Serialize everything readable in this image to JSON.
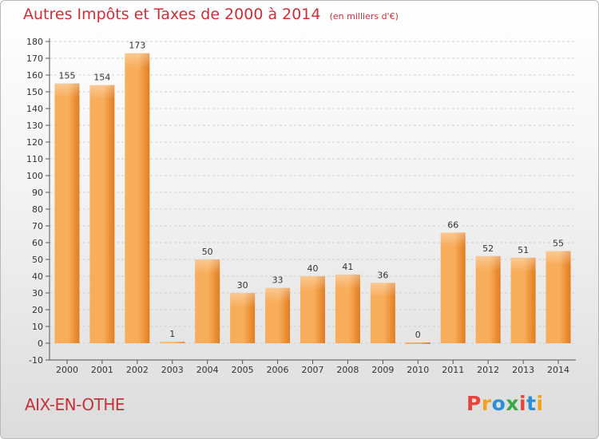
{
  "header": {
    "title": "Autres Impôts et Taxes de 2000 à 2014",
    "unit": "(en milliers d'€)"
  },
  "footer": {
    "place": "AIX-EN-OTHE",
    "logo": "Proxiti",
    "logo_colors": [
      "#e8433a",
      "#f2a31b",
      "#2a8fd6",
      "#3aa844",
      "#e8433a",
      "#2a8fd6",
      "#f2a31b"
    ]
  },
  "colors": {
    "bar_light": "#f8ad5a",
    "bar_dark": "#e27c1e",
    "title": "#c8303a",
    "grid": "#d0d0d0"
  },
  "chart_data": {
    "type": "bar",
    "title": "Autres Impôts et Taxes de 2000 à 2014",
    "subtitle": "(en milliers d'€)",
    "xlabel": "",
    "ylabel": "",
    "categories": [
      "2000",
      "2001",
      "2002",
      "2003",
      "2004",
      "2005",
      "2006",
      "2007",
      "2008",
      "2009",
      "2010",
      "2011",
      "2012",
      "2013",
      "2014"
    ],
    "values": [
      155,
      154,
      173,
      1,
      50,
      30,
      33,
      40,
      41,
      36,
      0,
      66,
      52,
      51,
      55
    ],
    "ylim": [
      -10,
      180
    ],
    "yticks": [
      -10,
      0,
      10,
      20,
      30,
      40,
      50,
      60,
      70,
      80,
      90,
      100,
      110,
      120,
      130,
      140,
      150,
      160,
      170,
      180
    ],
    "grid": true,
    "legend": "none"
  }
}
